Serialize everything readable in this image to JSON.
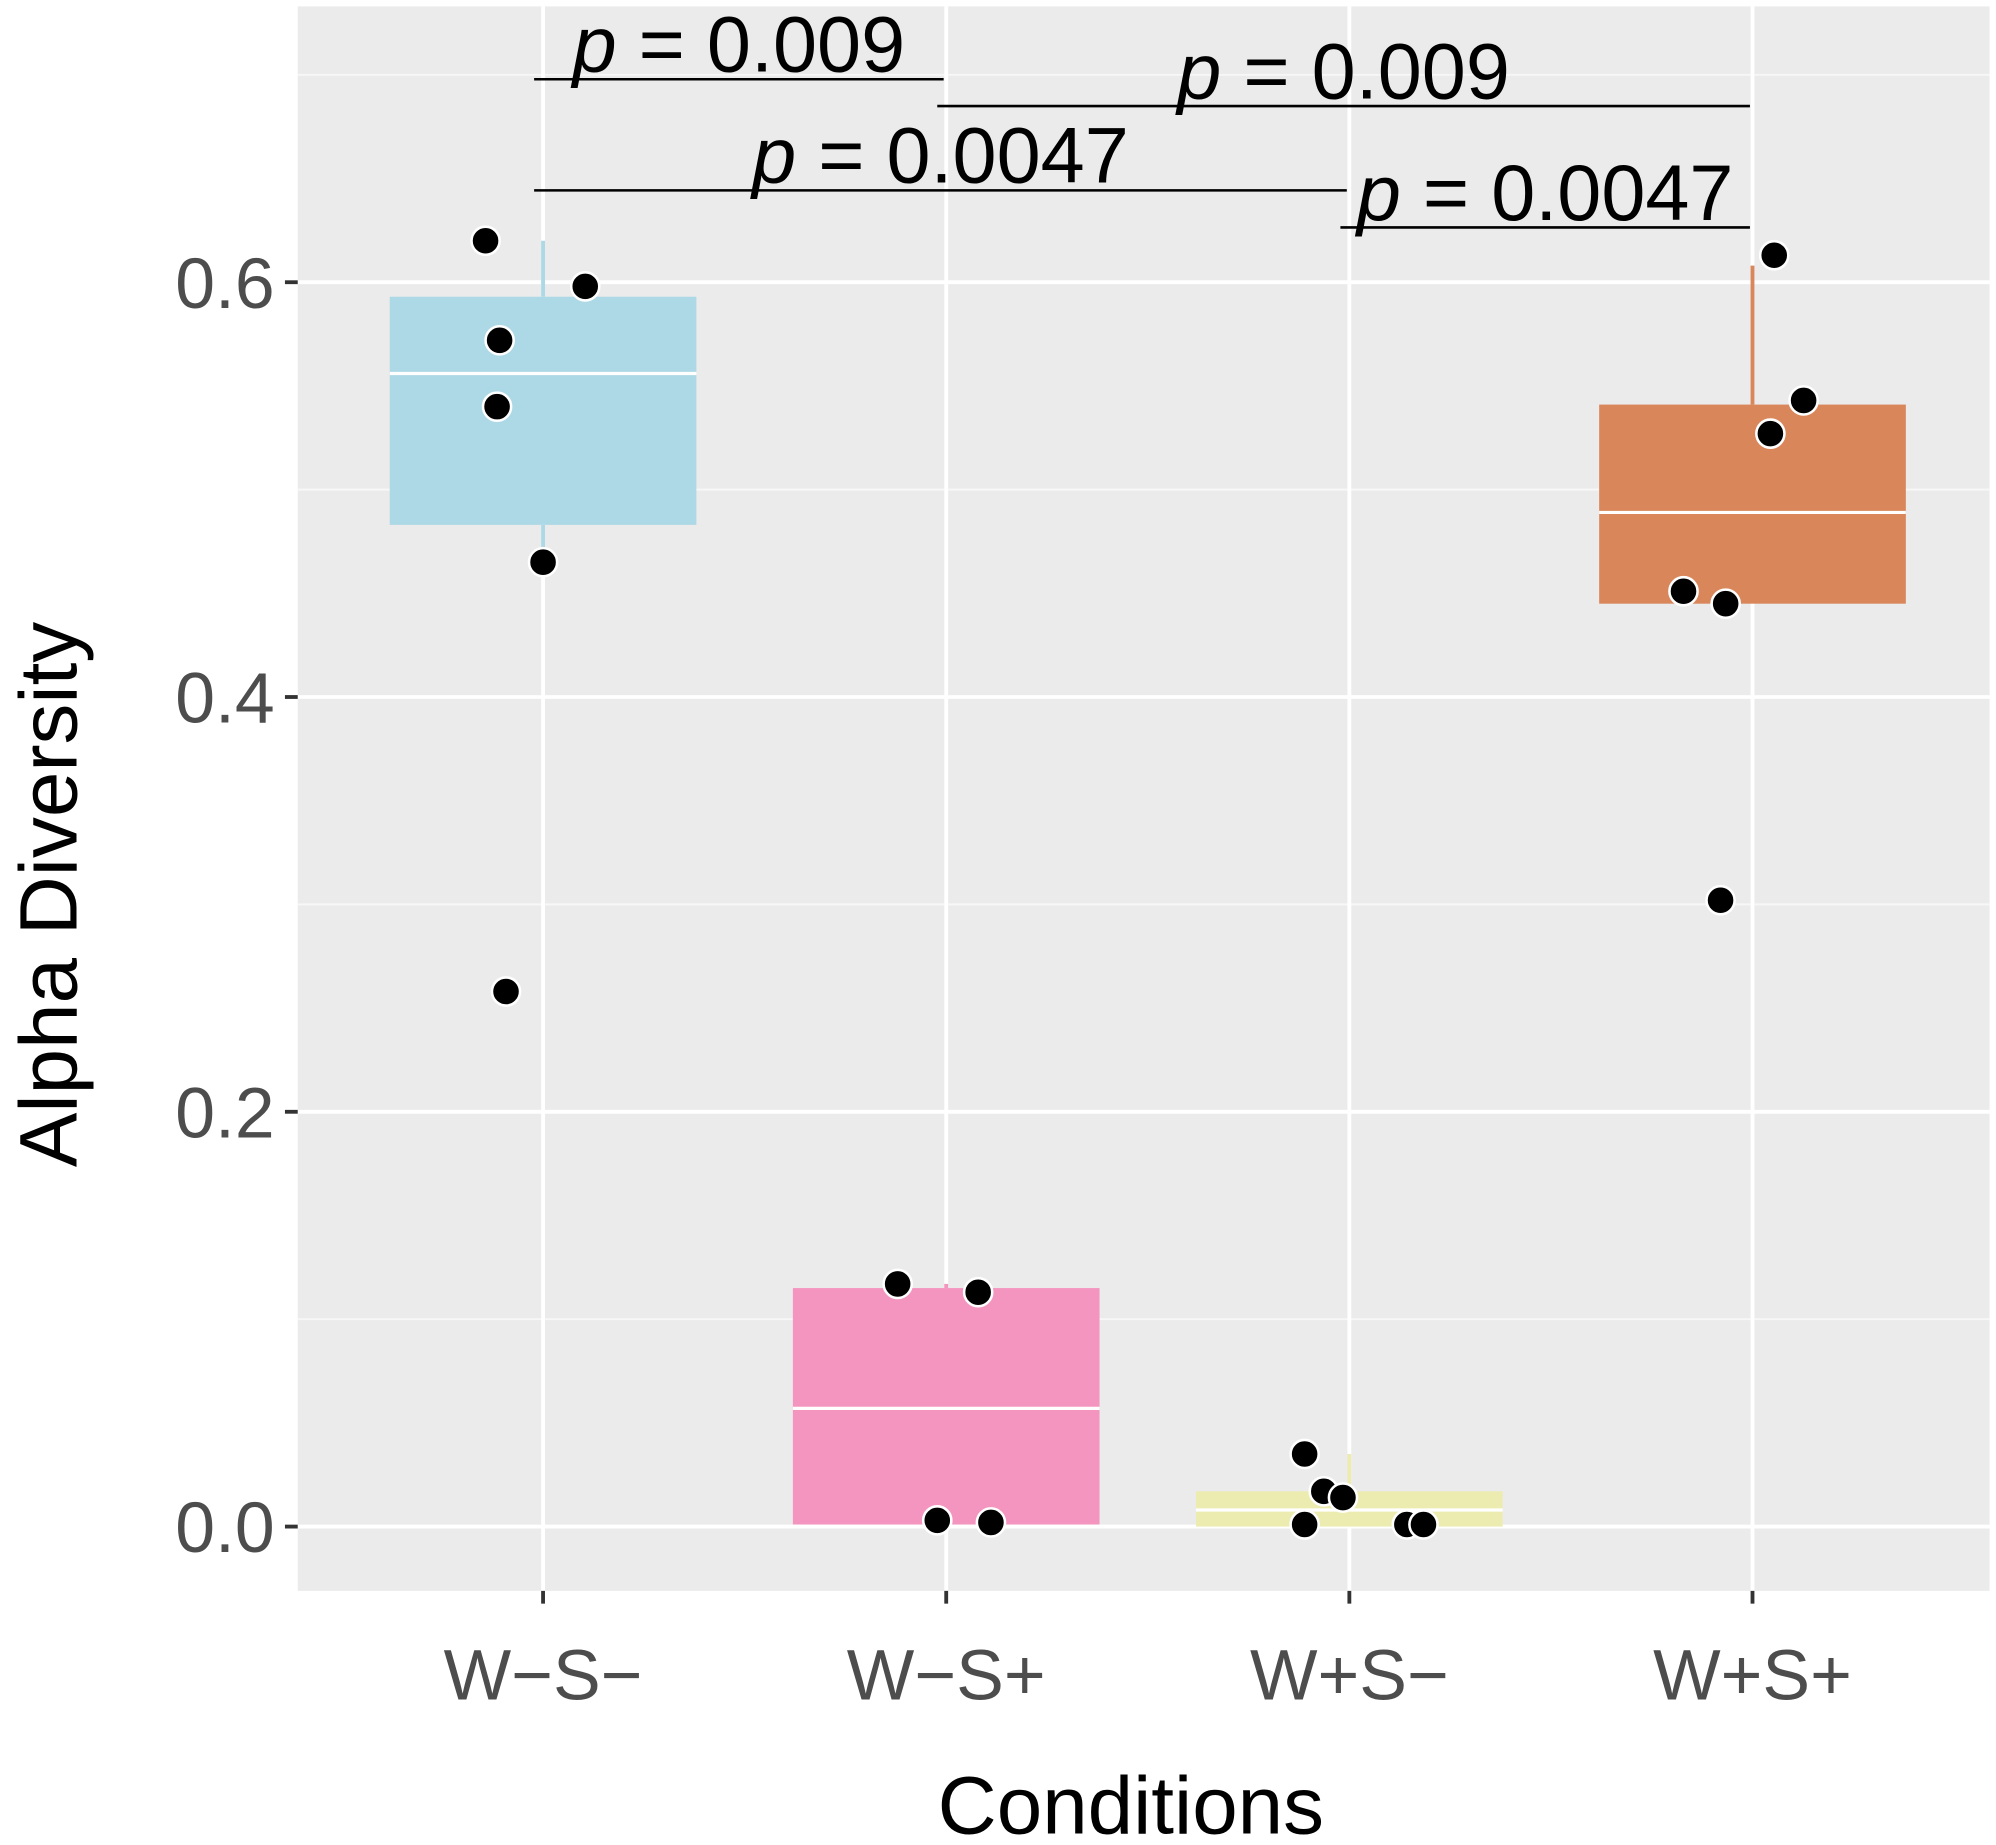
{
  "chart_data": {
    "type": "box",
    "x_label": "Conditions",
    "y_label": "Alpha Diversity",
    "categories": [
      "W−S−",
      "W−S+",
      "W+S−",
      "W+S+"
    ],
    "boxes": [
      {
        "color": "#add8e6",
        "whisker_low": 0.465,
        "q1": 0.483,
        "median": 0.556,
        "q3": 0.593,
        "whisker_high": 0.62,
        "points": [
          0.62,
          0.598,
          0.572,
          0.54,
          0.465,
          0.258
        ]
      },
      {
        "color": "#f495c0",
        "whisker_low": 0.001,
        "q1": 0.001,
        "median": 0.057,
        "q3": 0.115,
        "whisker_high": 0.117,
        "points": [
          0.117,
          0.113,
          0.003,
          0.002
        ]
      },
      {
        "color": "#ecebb0",
        "whisker_low": 0.0,
        "q1": 0.0,
        "median": 0.008,
        "q3": 0.017,
        "whisker_high": 0.035,
        "points": [
          0.035,
          0.017,
          0.014,
          0.001,
          0.001,
          0.001
        ]
      },
      {
        "color": "#d9865a",
        "whisker_low": 0.445,
        "q1": 0.445,
        "median": 0.489,
        "q3": 0.541,
        "whisker_high": 0.608,
        "points": [
          0.613,
          0.543,
          0.527,
          0.451,
          0.445,
          0.302
        ]
      }
    ],
    "point_color": "#000000",
    "annotations": [
      {
        "from": 0,
        "to": 1,
        "text": "p = 0.009"
      },
      {
        "from": 1,
        "to": 3,
        "text": "p = 0.009"
      },
      {
        "from": 0,
        "to": 2,
        "text": "p = 0.0047"
      },
      {
        "from": 2,
        "to": 3,
        "text": "p = 0.0047"
      }
    ],
    "ylim": [
      -0.031,
      0.733
    ],
    "yticks": [
      {
        "value": 0,
        "label": "0.0"
      },
      {
        "value": 0.2,
        "label": "0.2"
      },
      {
        "value": 0.4,
        "label": "0.4"
      },
      {
        "value": 0.6,
        "label": "0.6"
      }
    ],
    "y_minor_grid": [
      0.1,
      0.3,
      0.5,
      0.7
    ],
    "grid": true
  }
}
